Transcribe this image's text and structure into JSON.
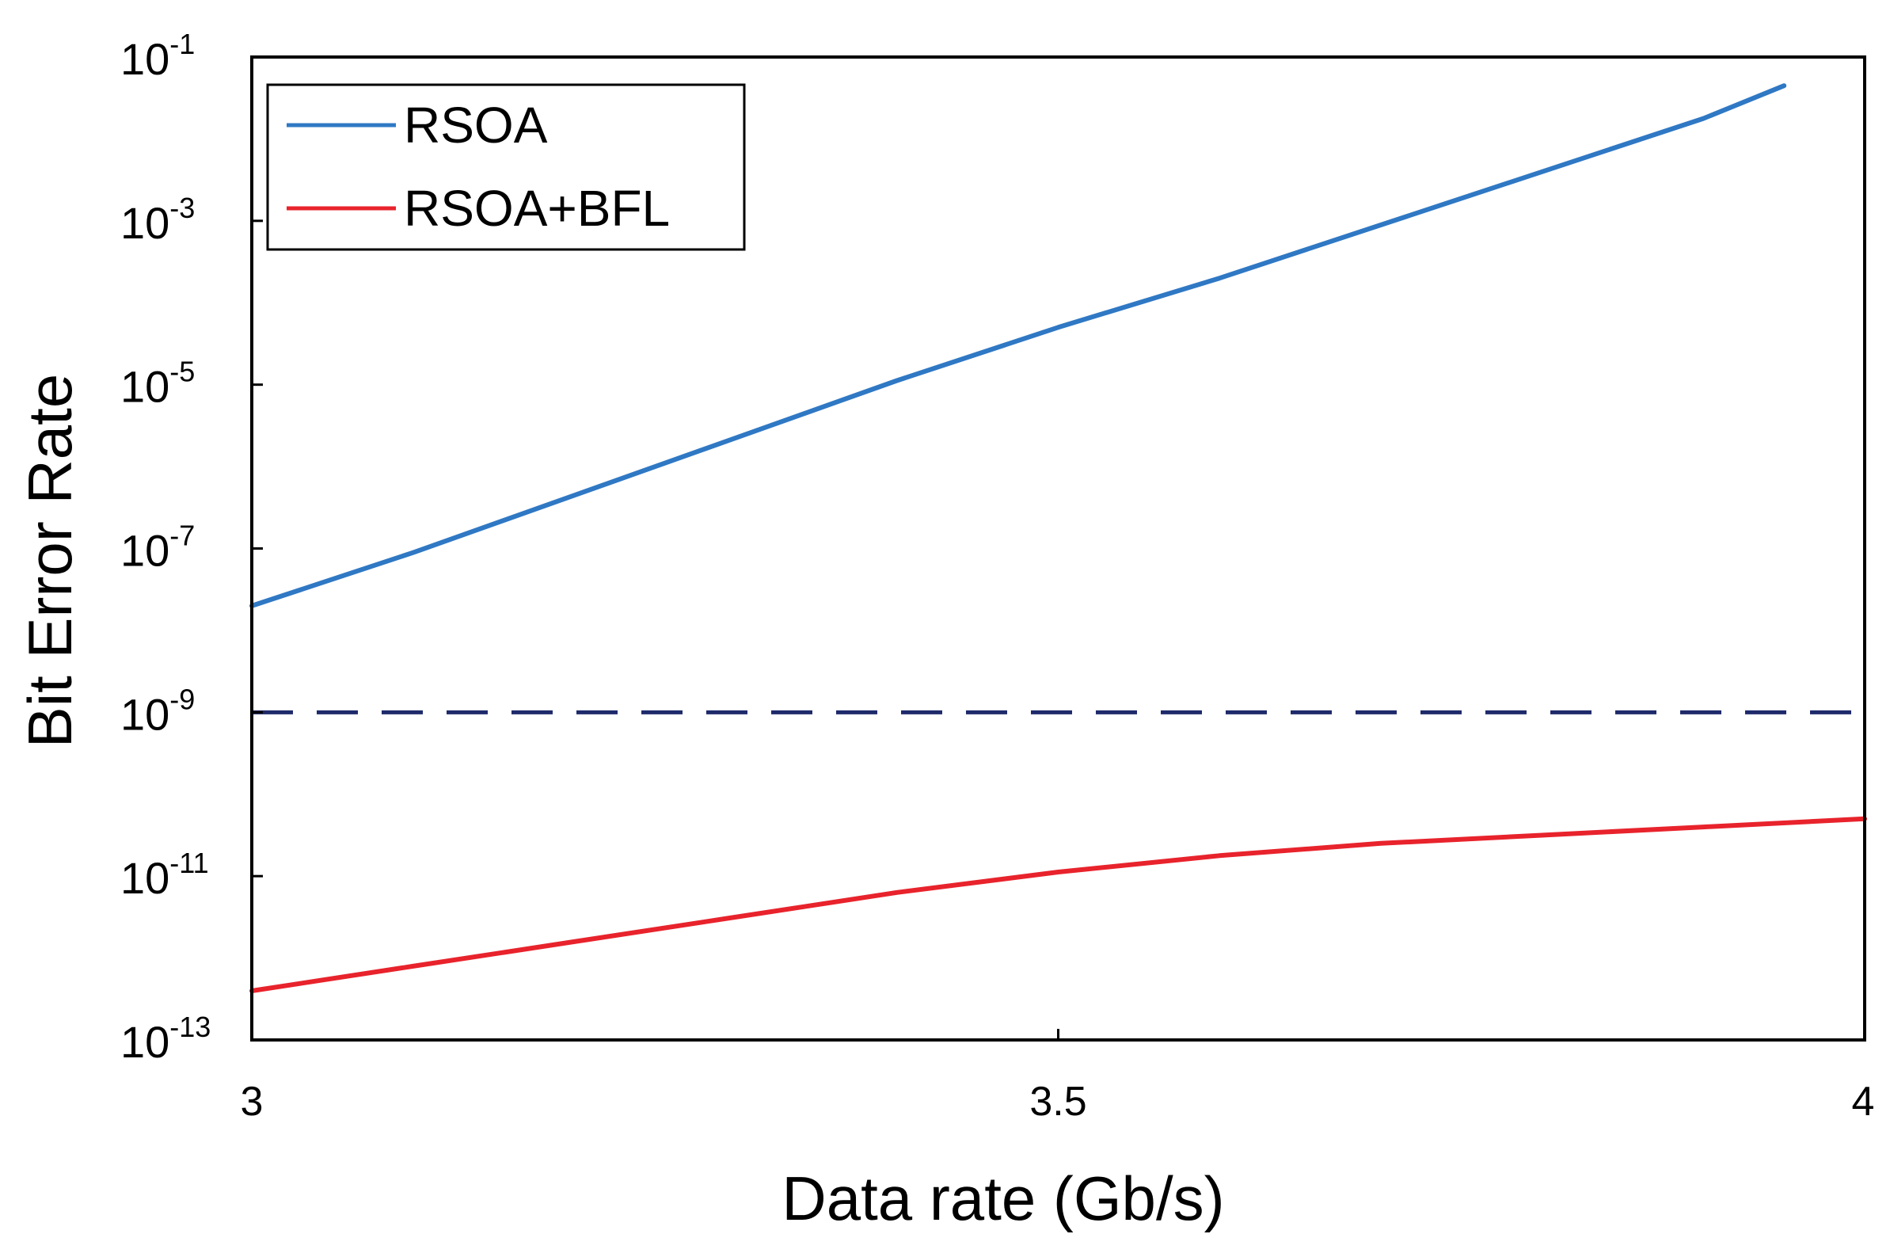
{
  "chart_data": {
    "type": "line",
    "title": "",
    "xlabel": "Data rate (Gb/s)",
    "ylabel": "Bit Error Rate",
    "yscale": "log",
    "xlim": [
      3,
      4
    ],
    "ylim_exponent": [
      -13,
      -1
    ],
    "x_ticks": [
      {
        "value": 3,
        "label": "3"
      },
      {
        "value": 3.5,
        "label": "3.5"
      },
      {
        "value": 4,
        "label": "4"
      }
    ],
    "y_ticks": [
      {
        "exponent": -1,
        "base": "10",
        "exp": "-1"
      },
      {
        "exponent": -3,
        "base": "10",
        "exp": "-3"
      },
      {
        "exponent": -5,
        "base": "10",
        "exp": "-5"
      },
      {
        "exponent": -7,
        "base": "10",
        "exp": "-7"
      },
      {
        "exponent": -9,
        "base": "10",
        "exp": "-9"
      },
      {
        "exponent": -11,
        "base": "10",
        "exp": "-11"
      },
      {
        "exponent": -13,
        "base": "10",
        "exp": "-13"
      }
    ],
    "threshold": {
      "exponent": -9,
      "color": "#1f2a6b",
      "style": "dashed"
    },
    "legend": {
      "position": "top-left"
    },
    "series": [
      {
        "name": "RSOA",
        "color": "#2f78c4",
        "x": [
          3.0,
          3.1,
          3.2,
          3.3,
          3.4,
          3.5,
          3.6,
          3.7,
          3.8,
          3.9,
          3.95
        ],
        "log10_y": [
          -7.7,
          -7.05,
          -6.35,
          -5.65,
          -4.95,
          -4.3,
          -3.7,
          -3.05,
          -2.4,
          -1.75,
          -1.35
        ]
      },
      {
        "name": "RSOA+BFL",
        "color": "#e8232c",
        "x": [
          3.0,
          3.1,
          3.2,
          3.3,
          3.4,
          3.5,
          3.6,
          3.7,
          3.8,
          3.9,
          4.0
        ],
        "log10_y": [
          -12.4,
          -12.1,
          -11.8,
          -11.5,
          -11.2,
          -10.95,
          -10.75,
          -10.6,
          -10.5,
          -10.4,
          -10.3
        ]
      }
    ]
  }
}
